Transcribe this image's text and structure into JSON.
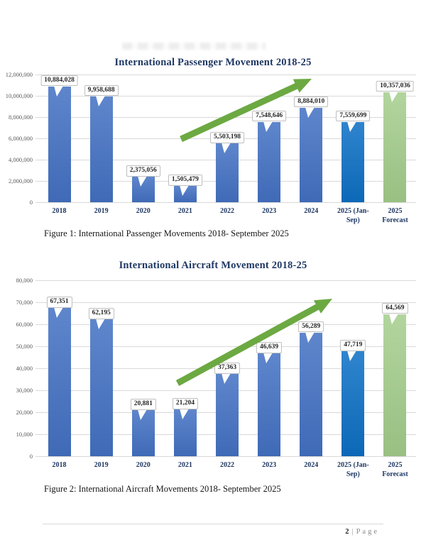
{
  "colors": {
    "bar_default": "#4472C4",
    "bar_current": "#0D70C5",
    "bar_forecast": "#A5CE8D",
    "trend_arrow": "#6CA942",
    "title_text": "#1F3864",
    "axis_text": "#595959",
    "gridline": "#D9D9D9"
  },
  "chart_data": [
    {
      "type": "bar",
      "title": "International Passenger Movement 2018-25",
      "caption": "Figure 1: International Passenger Movements 2018- September 2025",
      "categories": [
        "2018",
        "2019",
        "2020",
        "2021",
        "2022",
        "2023",
        "2024",
        "2025 (Jan-\nSep)",
        "2025\nForecast"
      ],
      "values": [
        10884028,
        9958688,
        2375056,
        1505479,
        5503198,
        7548646,
        8884010,
        7559699,
        10357036
      ],
      "data_labels": [
        "10,884,028",
        "9,958,688",
        "2,375,056",
        "1,505,479",
        "5,503,198",
        "7,548,646",
        "8,884,010",
        "7,559,699",
        "10,357,036"
      ],
      "bar_roles": [
        "default",
        "default",
        "default",
        "default",
        "default",
        "default",
        "default",
        "current",
        "forecast"
      ],
      "y_ticks": [
        "12,000,000",
        "10,000,000",
        "8,000,000",
        "6,000,000",
        "4,000,000",
        "2,000,000",
        "0"
      ],
      "ylim": [
        0,
        12000000
      ],
      "xlabel": "",
      "ylabel": "",
      "grid": true,
      "legend": "none",
      "annotations": [
        "upward-trend-arrow"
      ]
    },
    {
      "type": "bar",
      "title": "International Aircraft Movement 2018-25",
      "caption": "Figure 2: International Aircraft Movements 2018- September 2025",
      "categories": [
        "2018",
        "2019",
        "2020",
        "2021",
        "2022",
        "2023",
        "2024",
        "2025 (Jan-\nSep)",
        "2025\nForecast"
      ],
      "values": [
        67351,
        62195,
        20881,
        21204,
        37363,
        46639,
        56289,
        47719,
        64569
      ],
      "data_labels": [
        "67,351",
        "62,195",
        "20,881",
        "21,204",
        "37,363",
        "46,639",
        "56,289",
        "47,719",
        "64,569"
      ],
      "bar_roles": [
        "default",
        "default",
        "default",
        "default",
        "default",
        "default",
        "default",
        "current",
        "forecast"
      ],
      "y_ticks": [
        "80,000",
        "70,000",
        "60,000",
        "50,000",
        "40,000",
        "30,000",
        "20,000",
        "10,000",
        "0"
      ],
      "ylim": [
        0,
        80000
      ],
      "xlabel": "",
      "ylabel": "",
      "grid": true,
      "legend": "none",
      "annotations": [
        "upward-trend-arrow"
      ]
    }
  ],
  "footer": {
    "page_number": "2",
    "separator": "|",
    "page_word": "Page"
  }
}
